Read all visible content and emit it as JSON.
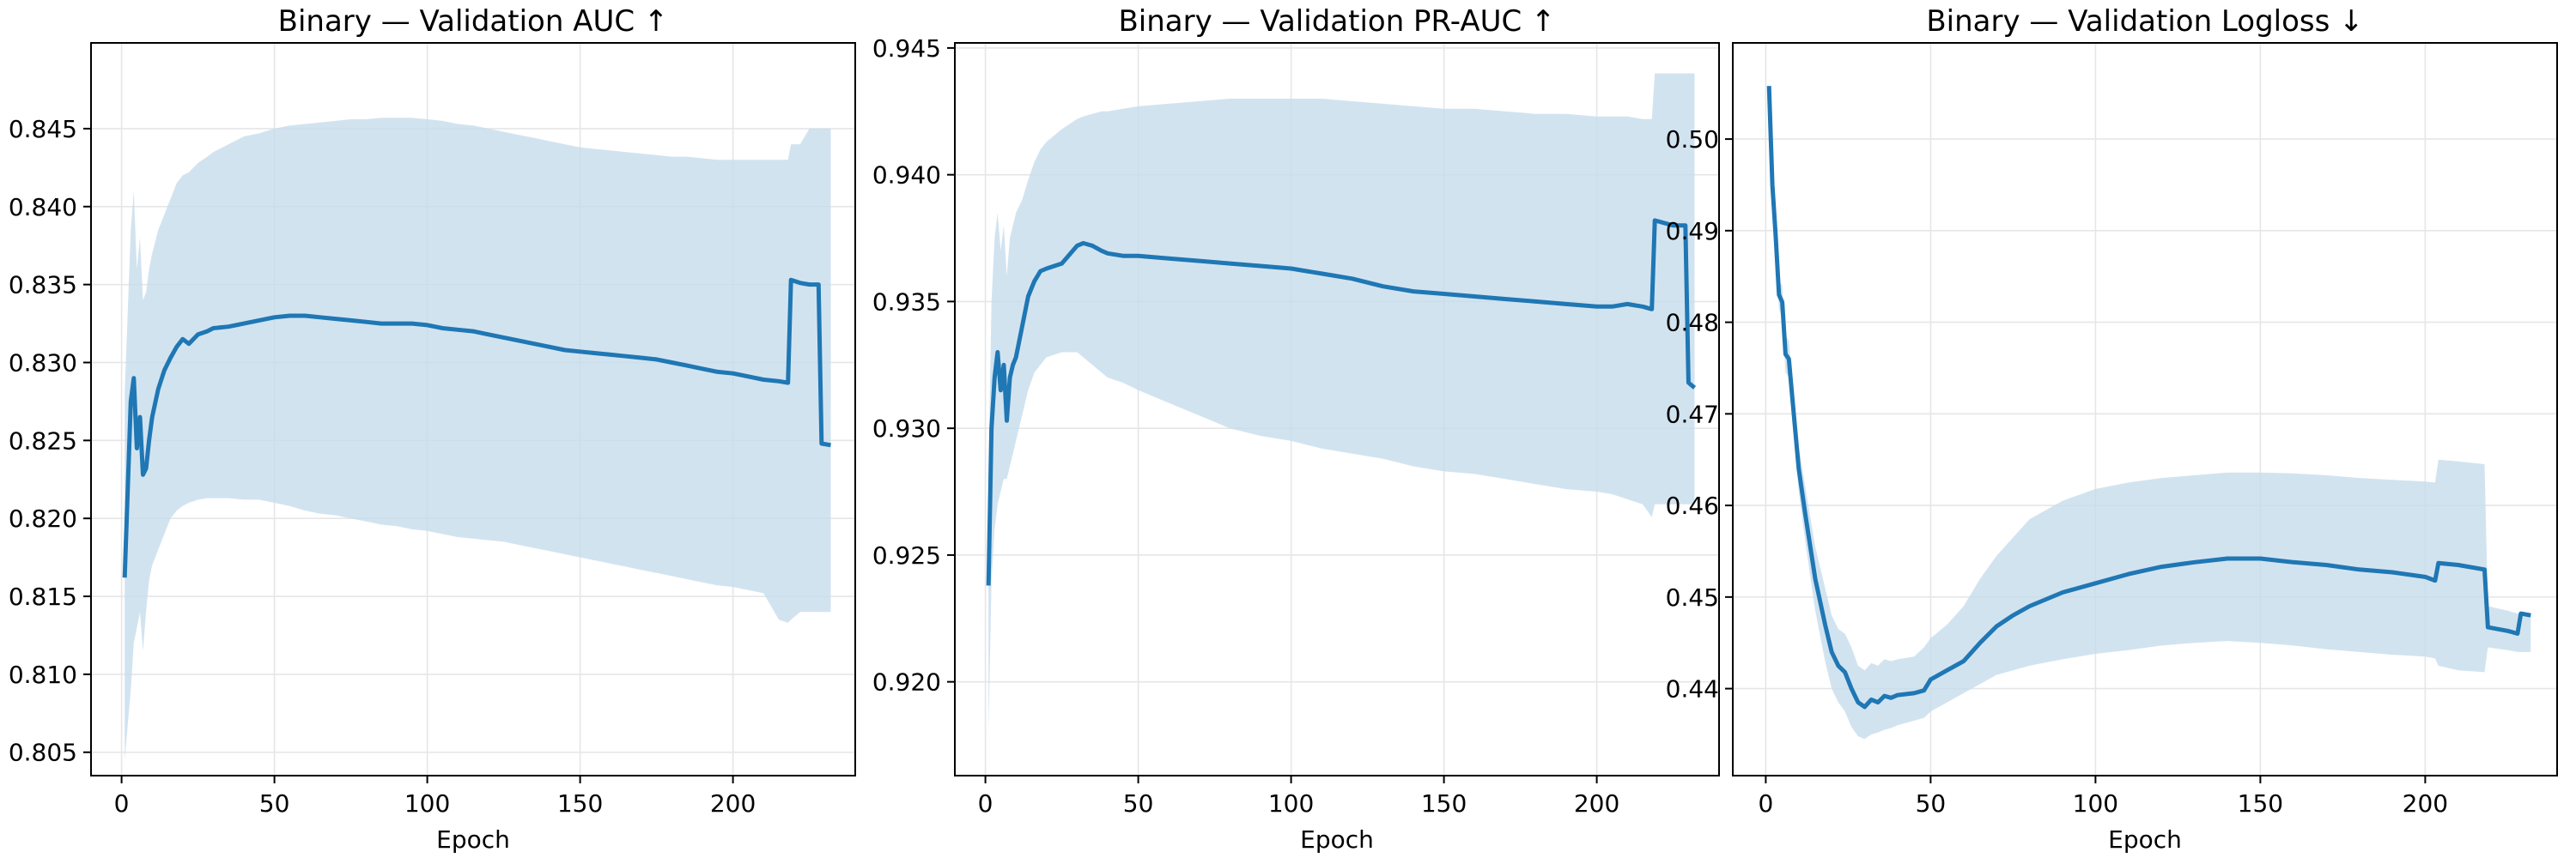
{
  "chart_data": [
    {
      "type": "line",
      "title": "Binary — Validation AUC ↑",
      "xlabel": "Epoch",
      "ylabel": "",
      "xlim": [
        -10,
        240
      ],
      "ylim": [
        0.8035,
        0.8505
      ],
      "xticks": [
        0,
        50,
        100,
        150,
        200
      ],
      "yticks": [
        0.805,
        0.81,
        0.815,
        0.82,
        0.825,
        0.83,
        0.835,
        0.84,
        0.845
      ],
      "ytick_labels": [
        "0.805",
        "0.810",
        "0.815",
        "0.820",
        "0.825",
        "0.830",
        "0.835",
        "0.840",
        "0.845"
      ],
      "grid": true,
      "color": "#1f77b4",
      "band_color": "#c7dcec",
      "series": [
        {
          "x": [
            1,
            3,
            4,
            5,
            6,
            7,
            8,
            9,
            10,
            12,
            14,
            16,
            18,
            20,
            22,
            25,
            28,
            30,
            35,
            40,
            45,
            50,
            55,
            60,
            65,
            70,
            75,
            80,
            85,
            90,
            95,
            100,
            105,
            110,
            115,
            120,
            125,
            130,
            135,
            140,
            145,
            150,
            155,
            160,
            165,
            170,
            175,
            180,
            185,
            190,
            195,
            200,
            205,
            210,
            215,
            218,
            219,
            222,
            225,
            228,
            229,
            232
          ],
          "values": [
            0.8162,
            0.8275,
            0.829,
            0.8245,
            0.8265,
            0.8228,
            0.8232,
            0.825,
            0.8265,
            0.8283,
            0.8295,
            0.8303,
            0.831,
            0.8315,
            0.8312,
            0.8318,
            0.832,
            0.8322,
            0.8323,
            0.8325,
            0.8327,
            0.8329,
            0.833,
            0.833,
            0.8329,
            0.8328,
            0.8327,
            0.8326,
            0.8325,
            0.8325,
            0.8325,
            0.8324,
            0.8322,
            0.8321,
            0.832,
            0.8318,
            0.8316,
            0.8314,
            0.8312,
            0.831,
            0.8308,
            0.8307,
            0.8306,
            0.8305,
            0.8304,
            0.8303,
            0.8302,
            0.83,
            0.8298,
            0.8296,
            0.8294,
            0.8293,
            0.8291,
            0.8289,
            0.8288,
            0.8287,
            0.8353,
            0.8351,
            0.835,
            0.835,
            0.8248,
            0.8247
          ],
          "lower": [
            0.8045,
            0.809,
            0.812,
            0.813,
            0.814,
            0.8115,
            0.814,
            0.816,
            0.817,
            0.818,
            0.819,
            0.82,
            0.8205,
            0.8208,
            0.821,
            0.8212,
            0.8213,
            0.8213,
            0.8213,
            0.8212,
            0.8212,
            0.821,
            0.8208,
            0.8205,
            0.8203,
            0.8202,
            0.82,
            0.8198,
            0.8196,
            0.8195,
            0.8193,
            0.8192,
            0.819,
            0.8188,
            0.8187,
            0.8186,
            0.8185,
            0.8183,
            0.8181,
            0.8179,
            0.8177,
            0.8175,
            0.8173,
            0.8171,
            0.8169,
            0.8167,
            0.8165,
            0.8163,
            0.8161,
            0.8159,
            0.8157,
            0.8156,
            0.8154,
            0.8152,
            0.8135,
            0.8133,
            0.8135,
            0.814,
            0.814,
            0.814,
            0.814,
            0.814
          ],
          "upper": [
            0.828,
            0.8385,
            0.841,
            0.836,
            0.838,
            0.834,
            0.8345,
            0.836,
            0.837,
            0.8385,
            0.8395,
            0.8405,
            0.8415,
            0.842,
            0.8422,
            0.8428,
            0.8432,
            0.8435,
            0.844,
            0.8445,
            0.8447,
            0.845,
            0.8452,
            0.8453,
            0.8454,
            0.8455,
            0.8456,
            0.8456,
            0.8457,
            0.8457,
            0.8457,
            0.8456,
            0.8455,
            0.8453,
            0.8452,
            0.845,
            0.8448,
            0.8446,
            0.8444,
            0.8442,
            0.844,
            0.8438,
            0.8437,
            0.8436,
            0.8435,
            0.8434,
            0.8433,
            0.8432,
            0.8432,
            0.8431,
            0.843,
            0.843,
            0.843,
            0.843,
            0.843,
            0.843,
            0.844,
            0.844,
            0.845,
            0.845,
            0.845,
            0.845
          ]
        }
      ]
    },
    {
      "type": "line",
      "title": "Binary — Validation PR-AUC ↑",
      "xlabel": "Epoch",
      "ylabel": "",
      "xlim": [
        -10,
        240
      ],
      "ylim": [
        0.9163,
        0.9452
      ],
      "xticks": [
        0,
        50,
        100,
        150,
        200
      ],
      "yticks": [
        0.92,
        0.925,
        0.93,
        0.935,
        0.94,
        0.945
      ],
      "ytick_labels": [
        "0.920",
        "0.925",
        "0.930",
        "0.935",
        "0.940",
        "0.945"
      ],
      "grid": true,
      "color": "#1f77b4",
      "band_color": "#c7dcec",
      "series": [
        {
          "x": [
            1,
            2,
            3,
            4,
            5,
            6,
            7,
            8,
            9,
            10,
            12,
            14,
            16,
            18,
            20,
            25,
            30,
            32,
            35,
            38,
            40,
            45,
            50,
            60,
            70,
            80,
            90,
            100,
            110,
            120,
            130,
            140,
            150,
            160,
            170,
            180,
            190,
            200,
            205,
            210,
            215,
            218,
            219,
            225,
            228,
            229,
            230,
            232
          ],
          "values": [
            0.9238,
            0.93,
            0.932,
            0.933,
            0.9315,
            0.9325,
            0.9303,
            0.932,
            0.9325,
            0.9328,
            0.934,
            0.9352,
            0.9358,
            0.9362,
            0.9363,
            0.9365,
            0.9372,
            0.9373,
            0.9372,
            0.937,
            0.9369,
            0.9368,
            0.9368,
            0.9367,
            0.9366,
            0.9365,
            0.9364,
            0.9363,
            0.9361,
            0.9359,
            0.9356,
            0.9354,
            0.9353,
            0.9352,
            0.9351,
            0.935,
            0.9349,
            0.9348,
            0.9348,
            0.9349,
            0.9348,
            0.9347,
            0.9382,
            0.938,
            0.938,
            0.938,
            0.9318,
            0.9316
          ],
          "lower": [
            0.918,
            0.924,
            0.926,
            0.927,
            0.9275,
            0.928,
            0.928,
            0.9285,
            0.929,
            0.9295,
            0.9305,
            0.9315,
            0.9322,
            0.9325,
            0.9328,
            0.933,
            0.933,
            0.9328,
            0.9325,
            0.9322,
            0.932,
            0.9318,
            0.9315,
            0.931,
            0.9305,
            0.93,
            0.9297,
            0.9295,
            0.9292,
            0.929,
            0.9288,
            0.9285,
            0.9283,
            0.9282,
            0.928,
            0.9278,
            0.9276,
            0.9275,
            0.9274,
            0.9272,
            0.927,
            0.9265,
            0.927,
            0.927,
            0.927,
            0.927,
            0.927,
            0.927
          ],
          "upper": [
            0.9285,
            0.935,
            0.9375,
            0.9385,
            0.937,
            0.938,
            0.936,
            0.9375,
            0.938,
            0.9385,
            0.939,
            0.9398,
            0.9405,
            0.941,
            0.9413,
            0.9418,
            0.9422,
            0.9423,
            0.9424,
            0.9425,
            0.9425,
            0.9426,
            0.9427,
            0.9428,
            0.9429,
            0.943,
            0.943,
            0.943,
            0.943,
            0.9429,
            0.9428,
            0.9427,
            0.9426,
            0.9426,
            0.9425,
            0.9424,
            0.9424,
            0.9423,
            0.9423,
            0.9423,
            0.9422,
            0.9422,
            0.944,
            0.944,
            0.944,
            0.944,
            0.944,
            0.944
          ]
        }
      ]
    },
    {
      "type": "line",
      "title": "Binary — Validation Logloss ↓",
      "xlabel": "Epoch",
      "ylabel": "",
      "xlim": [
        -10,
        240
      ],
      "ylim": [
        0.4305,
        0.5105
      ],
      "xticks": [
        0,
        50,
        100,
        150,
        200
      ],
      "yticks": [
        0.44,
        0.45,
        0.46,
        0.47,
        0.48,
        0.49,
        0.5
      ],
      "ytick_labels": [
        "0.44",
        "0.45",
        "0.46",
        "0.47",
        "0.48",
        "0.49",
        "0.50"
      ],
      "grid": true,
      "color": "#1f77b4",
      "band_color": "#c7dcec",
      "series": [
        {
          "x": [
            1,
            2,
            3,
            4,
            5,
            6,
            7,
            8,
            10,
            12,
            15,
            18,
            20,
            22,
            24,
            26,
            28,
            30,
            32,
            34,
            36,
            38,
            40,
            45,
            48,
            50,
            55,
            60,
            65,
            70,
            75,
            80,
            90,
            100,
            110,
            120,
            130,
            140,
            150,
            160,
            170,
            180,
            190,
            200,
            203,
            204,
            210,
            218,
            219,
            225,
            228,
            229,
            232
          ],
          "values": [
            0.5058,
            0.495,
            0.4895,
            0.483,
            0.4822,
            0.4765,
            0.476,
            0.472,
            0.464,
            0.459,
            0.452,
            0.447,
            0.444,
            0.4425,
            0.4418,
            0.44,
            0.4385,
            0.438,
            0.4388,
            0.4385,
            0.4392,
            0.439,
            0.4393,
            0.4395,
            0.4398,
            0.441,
            0.442,
            0.443,
            0.445,
            0.4468,
            0.448,
            0.449,
            0.4505,
            0.4515,
            0.4525,
            0.4533,
            0.4538,
            0.4542,
            0.4542,
            0.4538,
            0.4535,
            0.453,
            0.4527,
            0.4522,
            0.4518,
            0.4537,
            0.4535,
            0.453,
            0.4467,
            0.4463,
            0.446,
            0.4482,
            0.448
          ],
          "lower": [
            0.5055,
            0.494,
            0.488,
            0.4815,
            0.4805,
            0.4745,
            0.474,
            0.47,
            0.4615,
            0.456,
            0.4485,
            0.443,
            0.44,
            0.4385,
            0.4375,
            0.4358,
            0.4348,
            0.4345,
            0.435,
            0.4352,
            0.4355,
            0.4357,
            0.436,
            0.4365,
            0.4368,
            0.4375,
            0.4385,
            0.4395,
            0.4405,
            0.4415,
            0.442,
            0.4425,
            0.4432,
            0.4438,
            0.4442,
            0.4447,
            0.445,
            0.4452,
            0.445,
            0.4447,
            0.4443,
            0.444,
            0.4437,
            0.4435,
            0.4433,
            0.4425,
            0.442,
            0.4418,
            0.4445,
            0.4442,
            0.444,
            0.444,
            0.444
          ],
          "upper": [
            0.5061,
            0.496,
            0.491,
            0.4845,
            0.484,
            0.4785,
            0.478,
            0.474,
            0.4665,
            0.462,
            0.4555,
            0.451,
            0.448,
            0.4465,
            0.446,
            0.4445,
            0.4425,
            0.442,
            0.4428,
            0.4425,
            0.4432,
            0.443,
            0.4432,
            0.4435,
            0.4445,
            0.4455,
            0.447,
            0.449,
            0.452,
            0.4545,
            0.4565,
            0.4585,
            0.4605,
            0.4618,
            0.4625,
            0.463,
            0.4633,
            0.4636,
            0.4636,
            0.4635,
            0.4633,
            0.463,
            0.4628,
            0.4626,
            0.4625,
            0.465,
            0.4648,
            0.4645,
            0.449,
            0.4485,
            0.4482,
            0.4482,
            0.4482
          ]
        }
      ]
    }
  ]
}
